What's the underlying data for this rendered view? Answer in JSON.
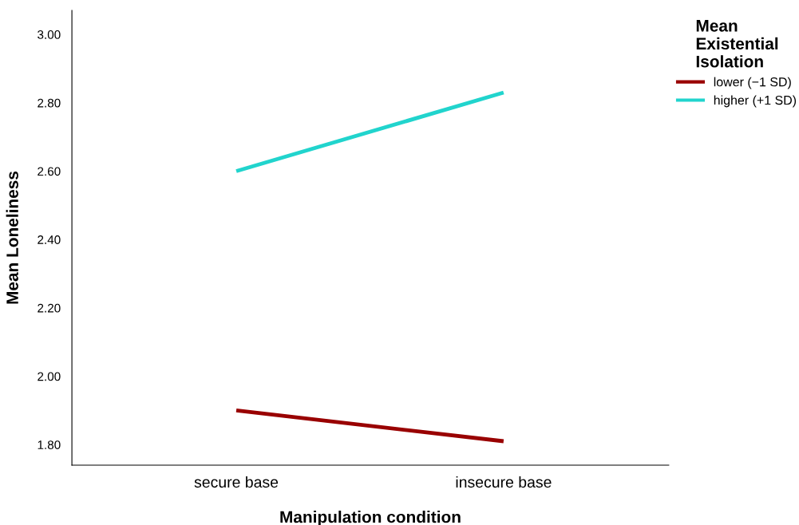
{
  "chart_data": {
    "type": "line",
    "xlabel": "Manipulation condition",
    "ylabel": "Mean Loneliness",
    "legend_title": "Mean Existential Isolation",
    "categories": [
      "secure base",
      "insecure base"
    ],
    "series": [
      {
        "name": "lower (−1 SD)",
        "color": "#990000",
        "values": [
          1.9,
          1.81
        ]
      },
      {
        "name": "higher (+1 SD)",
        "color": "#21d4cd",
        "values": [
          2.6,
          2.83
        ]
      }
    ],
    "ylim": [
      1.74,
      3.07
    ],
    "yticks": [
      {
        "value": 1.8,
        "label": "1.80"
      },
      {
        "value": 2.0,
        "label": "2.00"
      },
      {
        "value": 2.2,
        "label": "2.20"
      },
      {
        "value": 2.4,
        "label": "2.40"
      },
      {
        "value": 2.6,
        "label": "2.60"
      },
      {
        "value": 2.8,
        "label": "2.80"
      },
      {
        "value": 3.0,
        "label": "3.00"
      }
    ],
    "grid": false,
    "legend": "top right",
    "marker": "none",
    "line_style": "solid"
  }
}
